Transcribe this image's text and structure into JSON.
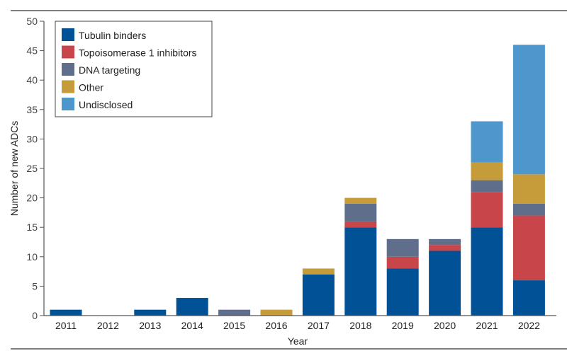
{
  "chart_data": {
    "type": "bar",
    "stacked": true,
    "xlabel": "Year",
    "ylabel": "Number of new ADCs",
    "ylim": [
      0,
      50
    ],
    "yticks": [
      0,
      5,
      10,
      15,
      20,
      25,
      30,
      35,
      40,
      45,
      50
    ],
    "grid": false,
    "legend_position": "top-left",
    "categories": [
      "2011",
      "2012",
      "2013",
      "2014",
      "2015",
      "2016",
      "2017",
      "2018",
      "2019",
      "2020",
      "2021",
      "2022"
    ],
    "series": [
      {
        "name": "Tubulin binders",
        "color": "#005196",
        "values": [
          1,
          0,
          1,
          3,
          0,
          0,
          7,
          15,
          8,
          11,
          15,
          6
        ]
      },
      {
        "name": "Topoisomerase 1 inhibitors",
        "color": "#c8464a",
        "values": [
          0,
          0,
          0,
          0,
          0,
          0,
          0,
          1,
          2,
          1,
          6,
          11
        ]
      },
      {
        "name": "DNA targeting",
        "color": "#5f6e8a",
        "values": [
          0,
          0,
          0,
          0,
          1,
          0,
          0,
          3,
          3,
          1,
          2,
          2
        ]
      },
      {
        "name": "Other",
        "color": "#c69c3a",
        "values": [
          0,
          0,
          0,
          0,
          0,
          1,
          1,
          1,
          0,
          0,
          3,
          5
        ]
      },
      {
        "name": "Undisclosed",
        "color": "#4e97cd",
        "values": [
          0,
          0,
          0,
          0,
          0,
          0,
          0,
          0,
          0,
          0,
          7,
          22
        ]
      }
    ]
  }
}
